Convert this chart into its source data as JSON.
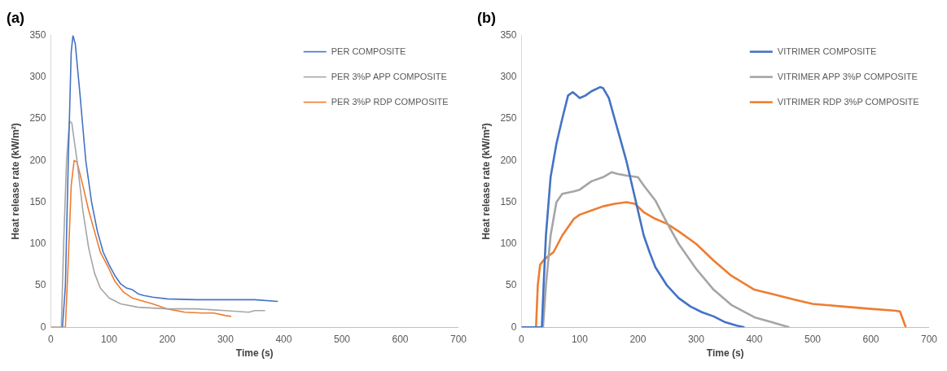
{
  "chart_data": [
    {
      "type": "line",
      "title": "(a)",
      "xlabel": "Time (s)",
      "ylabel": "Heat release rate (kW/m²)",
      "xlim": [
        0,
        700
      ],
      "xticks": [
        0,
        100,
        200,
        300,
        400,
        500,
        600,
        700
      ],
      "ylim": [
        0,
        350
      ],
      "yticks": [
        0,
        50,
        100,
        150,
        200,
        250,
        300,
        350
      ],
      "grid": false,
      "legend": "top right",
      "marker": "none",
      "line_style": "solid",
      "series": [
        {
          "name": "PER COMPOSITE",
          "color": "#4472c4",
          "x": [
            20,
            25,
            30,
            35,
            38,
            42,
            50,
            60,
            70,
            80,
            90,
            100,
            110,
            120,
            130,
            140,
            150,
            160,
            175,
            200,
            250,
            300,
            350,
            390
          ],
          "values": [
            0,
            50,
            200,
            330,
            350,
            340,
            280,
            200,
            150,
            115,
            90,
            75,
            62,
            52,
            47,
            45,
            40,
            38,
            36,
            34,
            33,
            33,
            33,
            31
          ]
        },
        {
          "name": "PER 3%P APP COMPOSITE",
          "color": "#a5a5a5",
          "x": [
            0,
            18,
            22,
            27,
            32,
            36,
            45,
            55,
            65,
            75,
            85,
            100,
            120,
            150,
            200,
            250,
            300,
            340,
            350,
            368
          ],
          "values": [
            0,
            0,
            100,
            200,
            247,
            245,
            200,
            140,
            95,
            65,
            47,
            35,
            28,
            24,
            22,
            22,
            20,
            18,
            20,
            20
          ]
        },
        {
          "name": "PER 3%P RDP COMPOSITE",
          "color": "#ed7d31",
          "x": [
            0,
            25,
            30,
            35,
            40,
            45,
            55,
            65,
            75,
            85,
            100,
            110,
            125,
            140,
            155,
            175,
            200,
            230,
            260,
            280,
            300,
            310
          ],
          "values": [
            0,
            0,
            80,
            170,
            200,
            198,
            170,
            140,
            115,
            90,
            70,
            55,
            42,
            35,
            32,
            28,
            22,
            18,
            17,
            17,
            14,
            13
          ]
        }
      ]
    },
    {
      "type": "line",
      "title": "(b)",
      "xlabel": "Time (s)",
      "ylabel": "Heat release rate (kW/m²)",
      "xlim": [
        0,
        700
      ],
      "xticks": [
        0,
        100,
        200,
        300,
        400,
        500,
        600,
        700
      ],
      "ylim": [
        0,
        350
      ],
      "yticks": [
        0,
        50,
        100,
        150,
        200,
        250,
        300,
        350
      ],
      "grid": false,
      "legend": "top right",
      "marker": "none",
      "line_style": "solid",
      "series": [
        {
          "name": "VITRIMER COMPOSITE",
          "color": "#4472c4",
          "x": [
            0,
            35,
            38,
            42,
            50,
            60,
            70,
            80,
            88,
            95,
            100,
            110,
            120,
            135,
            140,
            150,
            160,
            170,
            180,
            190,
            200,
            210,
            220,
            230,
            250,
            270,
            290,
            310,
            330,
            350,
            370,
            383
          ],
          "values": [
            0,
            0,
            50,
            110,
            180,
            220,
            250,
            278,
            282,
            278,
            275,
            278,
            283,
            288,
            287,
            275,
            250,
            225,
            200,
            170,
            140,
            110,
            90,
            72,
            50,
            35,
            25,
            18,
            13,
            6,
            2,
            0
          ]
        },
        {
          "name": "VITRIMER APP 3%P COMPOSITE",
          "color": "#a5a5a5",
          "x": [
            0,
            37,
            42,
            50,
            60,
            70,
            90,
            100,
            120,
            140,
            155,
            165,
            180,
            200,
            210,
            230,
            250,
            270,
            300,
            330,
            360,
            400,
            430,
            450,
            460
          ],
          "values": [
            0,
            0,
            50,
            110,
            150,
            160,
            163,
            165,
            175,
            180,
            186,
            184,
            182,
            180,
            170,
            152,
            125,
            100,
            70,
            45,
            27,
            12,
            6,
            2,
            0
          ]
        },
        {
          "name": "VITRIMER RDP 3%P COMPOSITE",
          "color": "#ed7d31",
          "x": [
            0,
            25,
            28,
            32,
            40,
            55,
            70,
            90,
            100,
            120,
            140,
            160,
            180,
            195,
            210,
            230,
            250,
            270,
            300,
            330,
            360,
            400,
            430,
            470,
            500,
            550,
            600,
            640,
            650,
            660
          ],
          "values": [
            0,
            0,
            50,
            75,
            82,
            90,
            110,
            130,
            135,
            140,
            145,
            148,
            150,
            148,
            138,
            130,
            124,
            115,
            100,
            80,
            62,
            45,
            40,
            33,
            28,
            25,
            22,
            20,
            19,
            0
          ]
        }
      ]
    }
  ]
}
